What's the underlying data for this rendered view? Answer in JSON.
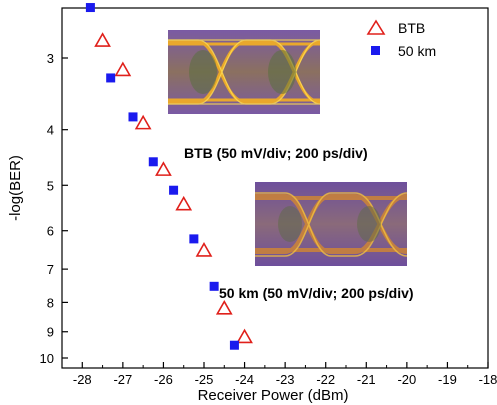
{
  "chart_data": {
    "type": "scatter",
    "title": "",
    "xlabel": "Receiver Power (dBm)",
    "ylabel": "-log(BER)",
    "xlim": [
      -28.5,
      -18
    ],
    "x_ticks": [
      -28,
      -27,
      -26,
      -25,
      -24,
      -23,
      -22,
      -21,
      -20,
      -19,
      -18
    ],
    "y_ticks": [
      3,
      4,
      5,
      6,
      7,
      8,
      9,
      10
    ],
    "y_scale": "log(-log(BER)), inverted",
    "grid": false,
    "legend_position": "top-right",
    "series": [
      {
        "name": "BTB",
        "marker": "open-triangle",
        "color": "#e0201b",
        "x": [
          -27.5,
          -27,
          -26.5,
          -26,
          -25.5,
          -25,
          -24.5,
          -24
        ],
        "y": [
          2.8,
          3.15,
          3.9,
          4.7,
          5.4,
          6.5,
          8.2,
          9.2
        ]
      },
      {
        "name": "50 km",
        "marker": "filled-square",
        "color": "#1a1aee",
        "x": [
          -27.8,
          -27.3,
          -26.75,
          -26.25,
          -25.75,
          -25.25,
          -24.75,
          -24.25
        ],
        "y": [
          2.45,
          3.25,
          3.8,
          4.55,
          5.1,
          6.2,
          7.5,
          9.5
        ]
      }
    ],
    "annotations": [
      "BTB (50 mV/div; 200 ps/div)",
      "50 km (50 mV/div; 200 ps/div)"
    ]
  },
  "colors": {
    "btb": "#e0201b",
    "km50": "#1a1aee",
    "eye_bg": "#6a4f98",
    "eye_trace": "#f5b022",
    "eye_inner": "#5a7a3a"
  }
}
